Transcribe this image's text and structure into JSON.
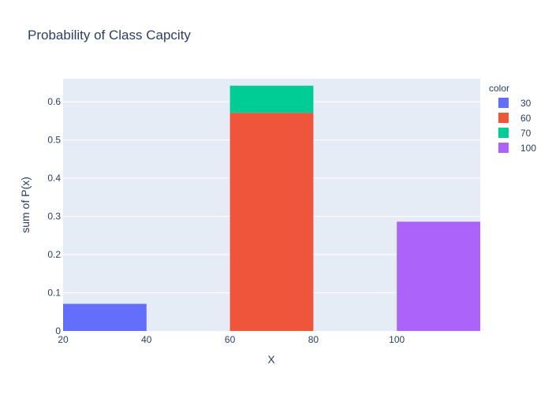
{
  "chart_data": {
    "type": "bar",
    "title": "Probability of Class Capcity",
    "xlabel": "X",
    "ylabel": "sum of P(x)",
    "xlim": [
      20,
      120
    ],
    "ylim": [
      0,
      0.66
    ],
    "x_ticks": [
      "20",
      "40",
      "60",
      "80",
      "100"
    ],
    "x_tick_values": [
      20,
      40,
      60,
      80,
      100
    ],
    "y_ticks": [
      "0",
      "0.1",
      "0.2",
      "0.3",
      "0.4",
      "0.5",
      "0.6"
    ],
    "y_tick_values": [
      0,
      0.1,
      0.2,
      0.3,
      0.4,
      0.5,
      0.6
    ],
    "bin_width": 20,
    "stacked": true,
    "grid": true,
    "legend_title": "color",
    "legend_position": "top-right",
    "series": [
      {
        "name": "30",
        "color": "#636efa",
        "bars": [
          {
            "x_start": 20,
            "value": 0.071
          }
        ]
      },
      {
        "name": "60",
        "color": "#ef553b",
        "bars": [
          {
            "x_start": 60,
            "value": 0.571
          }
        ]
      },
      {
        "name": "70",
        "color": "#00cc96",
        "bars": [
          {
            "x_start": 60,
            "value": 0.071
          }
        ]
      },
      {
        "name": "100",
        "color": "#ab63fa",
        "bars": [
          {
            "x_start": 100,
            "value": 0.286
          }
        ]
      }
    ]
  }
}
